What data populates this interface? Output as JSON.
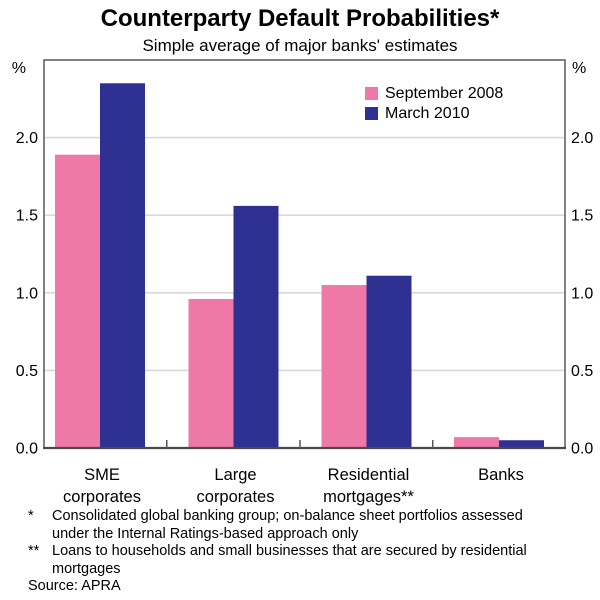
{
  "title": "Counterparty Default Probabilities*",
  "subtitle": "Simple average of major banks' estimates",
  "y_axis": {
    "unit_left": "%",
    "unit_right": "%",
    "tick_labels": [
      "0.0",
      "0.5",
      "1.0",
      "1.5",
      "2.0"
    ]
  },
  "legend": {
    "items": [
      {
        "label": "September 2008",
        "color": "#ee78a8"
      },
      {
        "label": "March 2010",
        "color": "#2e3192"
      }
    ]
  },
  "chart_data": {
    "type": "bar",
    "title": "Counterparty Default Probabilities*",
    "subtitle": "Simple average of major banks' estimates",
    "xlabel": "",
    "ylabel": "%",
    "ylim": [
      0,
      2.5
    ],
    "yticks": [
      0.0,
      0.5,
      1.0,
      1.5,
      2.0
    ],
    "grid": true,
    "legend_position": "top-right",
    "categories": [
      "SME corporates",
      "Large corporates",
      "Residential mortgages**",
      "Banks"
    ],
    "category_label_lines": [
      [
        "SME",
        "corporates"
      ],
      [
        "Large",
        "corporates"
      ],
      [
        "Residential",
        "mortgages**"
      ],
      [
        "Banks"
      ]
    ],
    "series": [
      {
        "name": "September 2008",
        "color": "#ee78a8",
        "values": [
          1.89,
          0.96,
          1.05,
          0.07
        ]
      },
      {
        "name": "March 2010",
        "color": "#2e3192",
        "values": [
          2.35,
          1.56,
          1.11,
          0.05
        ]
      }
    ],
    "colors": {
      "gridline": "#d9d9d9",
      "frame": "#58595b",
      "baseline": "#4a4a4c",
      "text": "#000000"
    }
  },
  "footnotes": [
    {
      "marker": "*",
      "lines": [
        "Consolidated global banking group; on-balance sheet portfolios assessed",
        "under the Internal Ratings-based approach only"
      ]
    },
    {
      "marker": "**",
      "lines": [
        "Loans to households and small businesses that are secured by residential",
        "mortgages"
      ]
    }
  ],
  "source": "Source: APRA"
}
